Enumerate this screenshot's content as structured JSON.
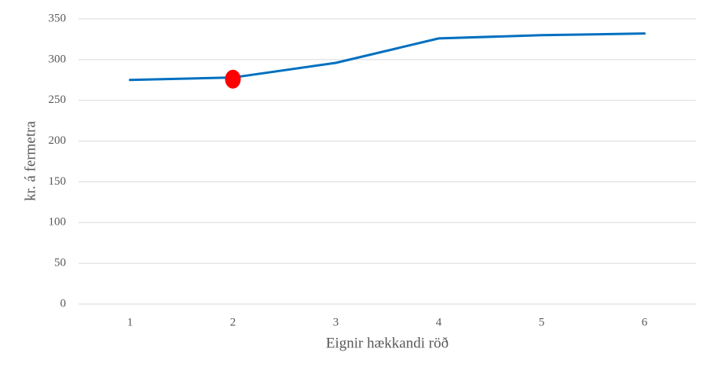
{
  "chart_data": {
    "type": "line",
    "categories": [
      "1",
      "2",
      "3",
      "4",
      "5",
      "6"
    ],
    "series": [
      {
        "color": "#0070c0",
        "values": [
          275,
          278,
          296,
          326,
          330,
          332
        ]
      },
      {
        "color": "#ff0000",
        "values": [
          null,
          276,
          null,
          null,
          null,
          null
        ],
        "marker": true
      }
    ],
    "ylim": [
      0,
      350
    ],
    "yticks": [
      0,
      50,
      100,
      150,
      200,
      250,
      300,
      350
    ],
    "grid": true,
    "xlabel": "Eignir hækkandi röð",
    "ylabel": "kr. á fermetra"
  }
}
